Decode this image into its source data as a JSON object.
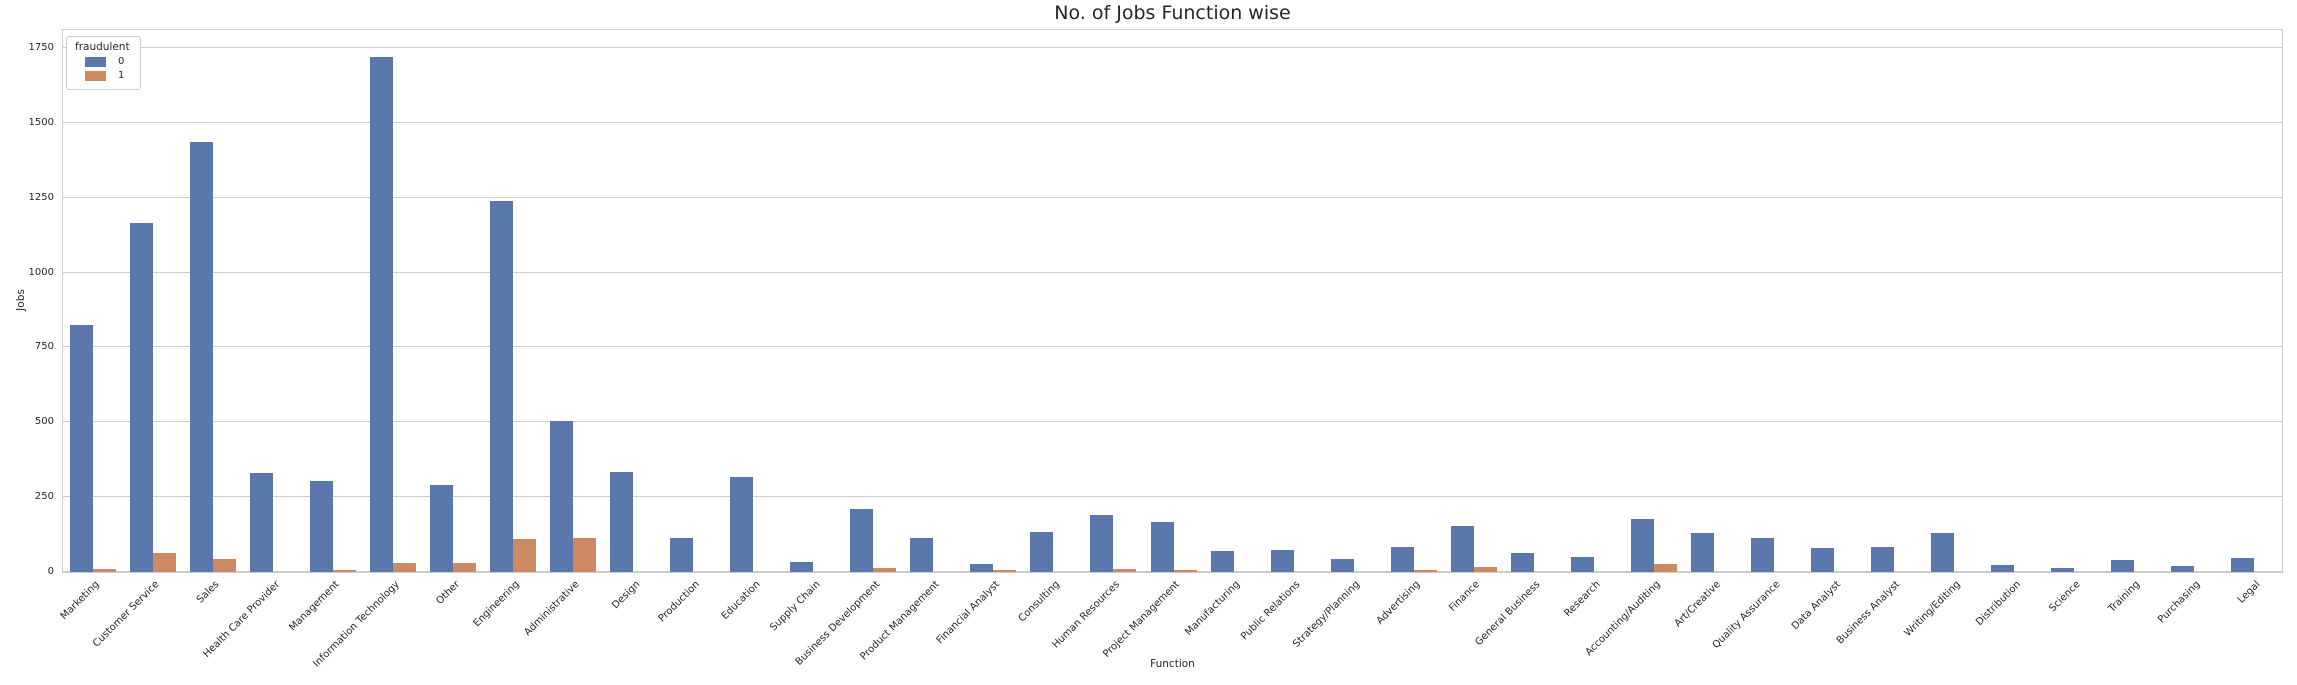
{
  "chart_data": {
    "type": "bar",
    "title": "No. of Jobs Function wise",
    "xlabel": "Function",
    "ylabel": "Jobs",
    "legend_title": "fraudulent",
    "legend_position": "upper-left",
    "grid": "horizontal",
    "ylim": [
      0,
      1810
    ],
    "yticks": [
      0,
      250,
      500,
      750,
      1000,
      1250,
      1500,
      1750
    ],
    "categories": [
      "Marketing",
      "Customer Service",
      "Sales",
      "Health Care Provider",
      "Management",
      "Information Technology",
      "Other",
      "Engineering",
      "Administrative",
      "Design",
      "Production",
      "Education",
      "Supply Chain",
      "Business Development",
      "Product Management",
      "Financial Analyst",
      "Consulting",
      "Human Resources",
      "Project Management",
      "Manufacturing",
      "Public Relations",
      "Strategy/Planning",
      "Advertising",
      "Finance",
      "General Business",
      "Research",
      "Accounting/Auditing",
      "Art/Creative",
      "Quality Assurance",
      "Data Analyst",
      "Business Analyst",
      "Writing/Editing",
      "Distribution",
      "Science",
      "Training",
      "Purchasing",
      "Legal"
    ],
    "series": [
      {
        "name": "0",
        "color": "#5a78ac",
        "values": [
          825,
          1165,
          1435,
          330,
          305,
          1720,
          290,
          1240,
          505,
          335,
          112,
          318,
          35,
          210,
          112,
          27,
          135,
          190,
          167,
          70,
          75,
          44,
          84,
          153,
          64,
          49,
          176,
          129,
          112,
          80,
          84,
          130,
          25,
          13,
          40,
          19,
          46
        ]
      },
      {
        "name": "1",
        "color": "#cc8962",
        "values": [
          10,
          65,
          45,
          0,
          7,
          30,
          30,
          110,
          115,
          0,
          0,
          0,
          0,
          13,
          0,
          6,
          0,
          10,
          8,
          0,
          0,
          0,
          6,
          17,
          0,
          0,
          28,
          0,
          0,
          0,
          0,
          0,
          0,
          0,
          0,
          0,
          0
        ]
      }
    ]
  },
  "style": {
    "grid_color": "#cccccc",
    "spine_color": "#cccccc",
    "text_color": "#262626",
    "background": "#ffffff"
  }
}
